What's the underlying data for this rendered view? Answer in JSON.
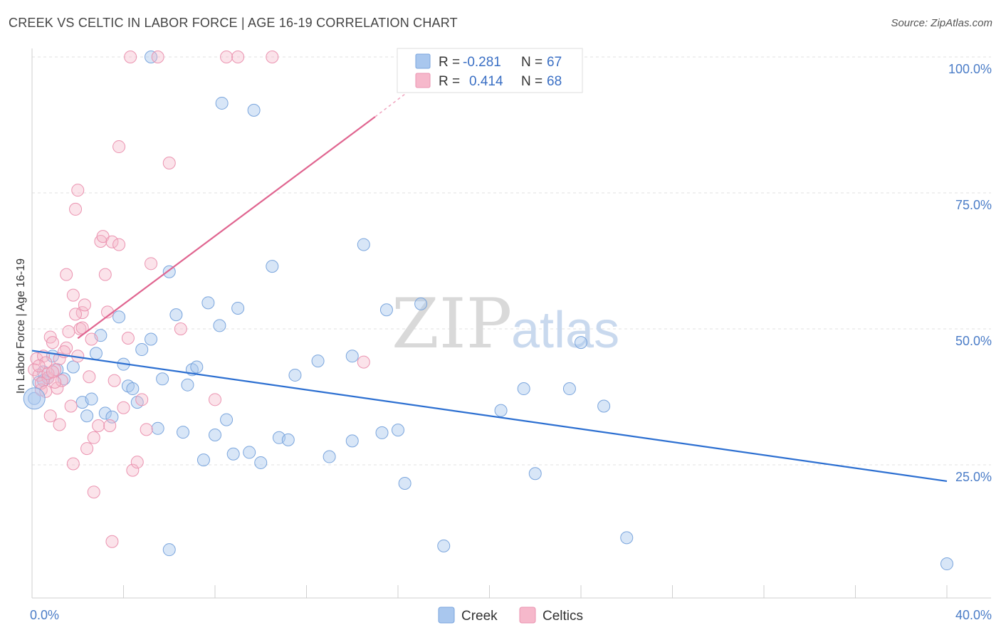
{
  "header": {
    "title": "CREEK VS CELTIC IN LABOR FORCE | AGE 16-19 CORRELATION CHART",
    "source": "Source: ZipAtlas.com"
  },
  "watermark": {
    "zip": "ZIP",
    "atlas": "atlas"
  },
  "chart_data": {
    "type": "scatter",
    "title": "CREEK VS CELTIC IN LABOR FORCE | AGE 16-19 CORRELATION CHART",
    "ylabel": "In Labor Force | Age 16-19",
    "xlim": [
      0,
      40
    ],
    "ylim": [
      0,
      105
    ],
    "x_tick_labels": [
      {
        "value": 0,
        "label": "0.0%"
      },
      {
        "value": 40,
        "label": "40.0%"
      }
    ],
    "y_tick_labels": [
      {
        "value": 25,
        "label": "25.0%"
      },
      {
        "value": 50,
        "label": "50.0%"
      },
      {
        "value": 75,
        "label": "75.0%"
      },
      {
        "value": 100,
        "label": "100.0%"
      }
    ],
    "grid": true,
    "legend_position": "top-center",
    "colors": {
      "Creek": "#a9c7ee",
      "Creek_line": "#2c6fd1",
      "Celtics": "#f6b8cb",
      "Celtics_line": "#e06590"
    },
    "stats": [
      {
        "series": "Creek",
        "r_label": "R =",
        "r_value": "-0.281",
        "n_label": "N =",
        "n_value": "67"
      },
      {
        "series": "Celtics",
        "r_label": "R =",
        "r_value": "0.414",
        "n_label": "N =",
        "n_value": "68"
      }
    ],
    "series": [
      {
        "name": "Creek",
        "trend": {
          "x0": 0,
          "y0": 46.0,
          "x1": 40,
          "y1": 22.0
        },
        "points": [
          [
            0.1,
            37.2
          ],
          [
            0.3,
            40.2
          ],
          [
            0.5,
            42.1
          ],
          [
            0.7,
            41.0
          ],
          [
            0.9,
            45.0
          ],
          [
            1.1,
            42.5
          ],
          [
            1.4,
            40.8
          ],
          [
            1.8,
            43.0
          ],
          [
            2.2,
            36.5
          ],
          [
            2.6,
            37.1
          ],
          [
            2.4,
            34.0
          ],
          [
            2.8,
            45.5
          ],
          [
            3.0,
            48.8
          ],
          [
            3.2,
            34.5
          ],
          [
            3.5,
            33.8
          ],
          [
            3.8,
            52.2
          ],
          [
            4.0,
            43.5
          ],
          [
            4.2,
            39.5
          ],
          [
            4.4,
            39.0
          ],
          [
            4.6,
            36.5
          ],
          [
            4.8,
            46.2
          ],
          [
            5.2,
            48.1
          ],
          [
            5.5,
            31.7
          ],
          [
            5.7,
            40.8
          ],
          [
            6.0,
            60.5
          ],
          [
            6.3,
            52.6
          ],
          [
            6.6,
            31.0
          ],
          [
            6.8,
            39.7
          ],
          [
            7.0,
            42.5
          ],
          [
            7.2,
            43.0
          ],
          [
            7.5,
            25.9
          ],
          [
            7.7,
            54.8
          ],
          [
            8.0,
            30.5
          ],
          [
            8.2,
            50.6
          ],
          [
            8.5,
            33.3
          ],
          [
            8.8,
            27.0
          ],
          [
            9.0,
            53.8
          ],
          [
            9.5,
            27.3
          ],
          [
            10.0,
            25.4
          ],
          [
            10.5,
            61.5
          ],
          [
            10.8,
            30.0
          ],
          [
            11.2,
            29.6
          ],
          [
            11.5,
            41.5
          ],
          [
            12.5,
            44.1
          ],
          [
            13.0,
            26.5
          ],
          [
            14.0,
            29.4
          ],
          [
            14.5,
            65.5
          ],
          [
            15.3,
            30.9
          ],
          [
            15.5,
            53.5
          ],
          [
            16.0,
            31.4
          ],
          [
            16.3,
            21.6
          ],
          [
            17.0,
            54.6
          ],
          [
            18.0,
            10.1
          ],
          [
            20.5,
            35.0
          ],
          [
            21.5,
            39.0
          ],
          [
            22.0,
            23.4
          ],
          [
            23.5,
            39.0
          ],
          [
            24.0,
            47.5
          ],
          [
            25.0,
            35.8
          ],
          [
            26.0,
            11.6
          ],
          [
            8.3,
            91.5
          ],
          [
            9.7,
            90.2
          ],
          [
            5.2,
            100.0
          ],
          [
            6.0,
            9.4
          ],
          [
            14.0,
            45.0
          ],
          [
            40.0,
            6.8
          ],
          [
            0.5,
            40.5
          ]
        ]
      },
      {
        "name": "Celtics",
        "trend": {
          "x0": 0,
          "y0": 42.0,
          "x1": 15.0,
          "y1": 89.0,
          "dash_x1": 17.5,
          "dash_y1": 97.0
        },
        "points": [
          [
            0.1,
            42.5
          ],
          [
            0.2,
            44.5
          ],
          [
            0.3,
            41.5
          ],
          [
            0.4,
            38.8
          ],
          [
            0.5,
            45.0
          ],
          [
            0.6,
            43.8
          ],
          [
            0.7,
            41.0
          ],
          [
            0.8,
            48.5
          ],
          [
            0.9,
            47.5
          ],
          [
            1.0,
            42.5
          ],
          [
            1.1,
            39.1
          ],
          [
            1.2,
            32.4
          ],
          [
            1.3,
            40.5
          ],
          [
            1.5,
            46.5
          ],
          [
            1.6,
            49.5
          ],
          [
            1.7,
            35.8
          ],
          [
            1.8,
            56.2
          ],
          [
            1.9,
            72.0
          ],
          [
            2.0,
            45.0
          ],
          [
            2.1,
            50.0
          ],
          [
            2.2,
            53.0
          ],
          [
            2.3,
            54.4
          ],
          [
            2.5,
            41.2
          ],
          [
            2.6,
            48.1
          ],
          [
            2.7,
            30.0
          ],
          [
            2.9,
            32.2
          ],
          [
            3.0,
            66.1
          ],
          [
            3.1,
            67.0
          ],
          [
            3.2,
            60.0
          ],
          [
            3.3,
            53.1
          ],
          [
            3.4,
            32.2
          ],
          [
            3.5,
            66.0
          ],
          [
            3.6,
            40.5
          ],
          [
            3.8,
            65.5
          ],
          [
            4.0,
            35.5
          ],
          [
            4.2,
            48.3
          ],
          [
            4.4,
            24.0
          ],
          [
            4.6,
            25.5
          ],
          [
            4.8,
            37.0
          ],
          [
            5.0,
            31.5
          ],
          [
            5.2,
            62.0
          ],
          [
            5.5,
            100.0
          ],
          [
            6.0,
            80.5
          ],
          [
            6.5,
            50.0
          ],
          [
            8.0,
            37.0
          ],
          [
            8.5,
            100.0
          ],
          [
            9.0,
            100.0
          ],
          [
            10.5,
            100.0
          ],
          [
            4.3,
            100.0
          ],
          [
            3.8,
            83.5
          ],
          [
            2.0,
            75.5
          ],
          [
            1.5,
            60.0
          ],
          [
            2.7,
            20.0
          ],
          [
            3.5,
            10.9
          ],
          [
            1.8,
            25.2
          ],
          [
            0.8,
            34.0
          ],
          [
            0.4,
            40.0
          ],
          [
            2.4,
            28.0
          ],
          [
            14.5,
            43.9
          ],
          [
            1.2,
            44.5
          ],
          [
            0.6,
            38.5
          ],
          [
            1.0,
            40.2
          ],
          [
            0.3,
            43.2
          ],
          [
            0.7,
            41.8
          ],
          [
            1.4,
            45.8
          ],
          [
            2.2,
            50.2
          ],
          [
            1.9,
            52.7
          ],
          [
            0.9,
            42.1
          ]
        ]
      }
    ]
  }
}
